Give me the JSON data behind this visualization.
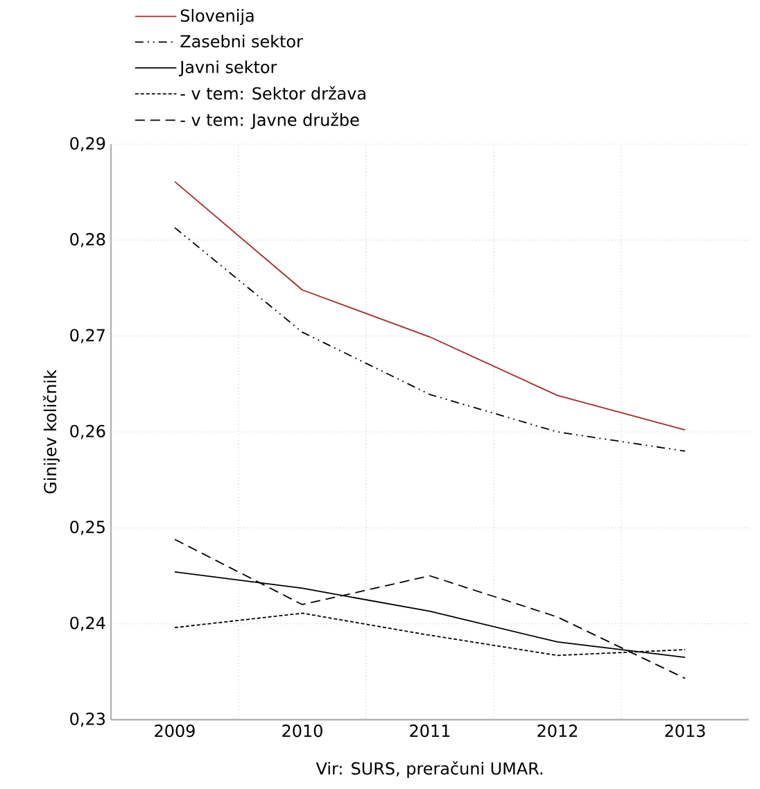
{
  "chart_data": {
    "type": "line",
    "ylabel": "Ginijev količnik",
    "annotations": [
      "Vir: SURS, preračuni UMAR."
    ],
    "categories": [
      "2009",
      "2010",
      "2011",
      "2012",
      "2013"
    ],
    "series": [
      {
        "name": "Slovenija",
        "color": "#a52a2a",
        "line_style": "solid",
        "values": [
          0.2861,
          0.2748,
          0.2699,
          0.2638,
          0.2602
        ]
      },
      {
        "name": "Zasebni sektor",
        "color": "#000000",
        "line_style": "dashdotted",
        "values": [
          0.2813,
          0.2704,
          0.2639,
          0.26,
          0.258
        ]
      },
      {
        "name": "Javni sektor",
        "color": "#000000",
        "line_style": "solid",
        "values": [
          0.2454,
          0.2437,
          0.2413,
          0.2381,
          0.2365
        ]
      },
      {
        "name": "- v  tem:  Sektor država",
        "color": "#000000",
        "line_style": "dotted",
        "values": [
          0.2396,
          0.2411,
          0.2388,
          0.2367,
          0.2373
        ]
      },
      {
        "name": "- v  tem: Javne družbe",
        "color": "#000000",
        "line_style": "dashed",
        "values": [
          0.2488,
          0.242,
          0.245,
          0.2407,
          0.2343
        ]
      }
    ],
    "ylim": [
      0.23,
      0.29
    ],
    "yticks": [
      {
        "value": 0.23,
        "label": "0,23"
      },
      {
        "value": 0.24,
        "label": "0,24"
      },
      {
        "value": 0.25,
        "label": "0,25"
      },
      {
        "value": 0.26,
        "label": "0,26"
      },
      {
        "value": 0.27,
        "label": "0,27"
      },
      {
        "value": 0.28,
        "label": "0,28"
      },
      {
        "value": 0.29,
        "label": "0,29"
      }
    ],
    "grid": true,
    "legend": "top left",
    "marker": "none"
  }
}
